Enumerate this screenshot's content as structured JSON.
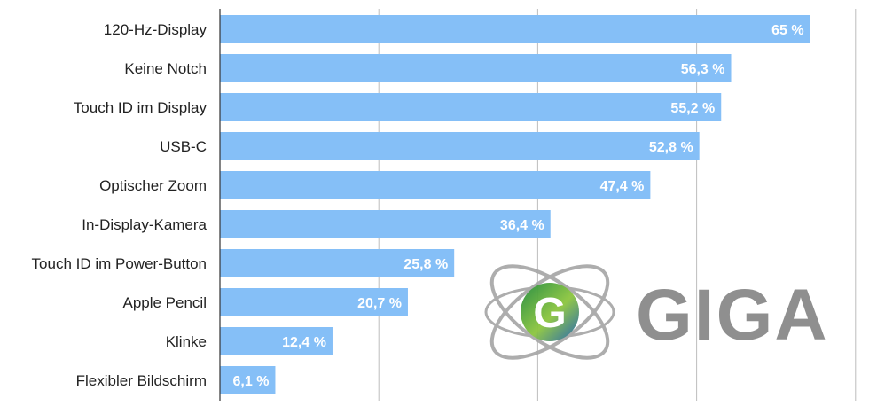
{
  "chart_data": {
    "type": "bar",
    "orientation": "horizontal",
    "categories": [
      "120-Hz-Display",
      "Keine Notch",
      "Touch ID im Display",
      "USB-C",
      "Optischer Zoom",
      "In-Display-Kamera",
      "Touch ID im Power-Button",
      "Apple Pencil",
      "Klinke",
      "Flexibler Bildschirm"
    ],
    "values": [
      65,
      56.3,
      55.2,
      52.8,
      47.4,
      36.4,
      25.8,
      20.7,
      12.4,
      6.1
    ],
    "value_labels": [
      "65 %",
      "56,3 %",
      "55,2 %",
      "52,8 %",
      "47,4 %",
      "36,4 %",
      "25,8 %",
      "20,7 %",
      "12,4 %",
      "6,1 %"
    ],
    "title": "",
    "xlabel": "",
    "ylabel": "",
    "xlim": [
      0,
      70
    ],
    "grid": true,
    "bar_color": "#85bff7",
    "grid_color": "#bdbdbd"
  },
  "watermark": {
    "text": "GIGA",
    "text_color": "#8a8a8a",
    "ring_color": "#a9a9a9",
    "emblem_colors": [
      "#1f8a3c",
      "#8dc63f",
      "#1b5fb0"
    ]
  }
}
